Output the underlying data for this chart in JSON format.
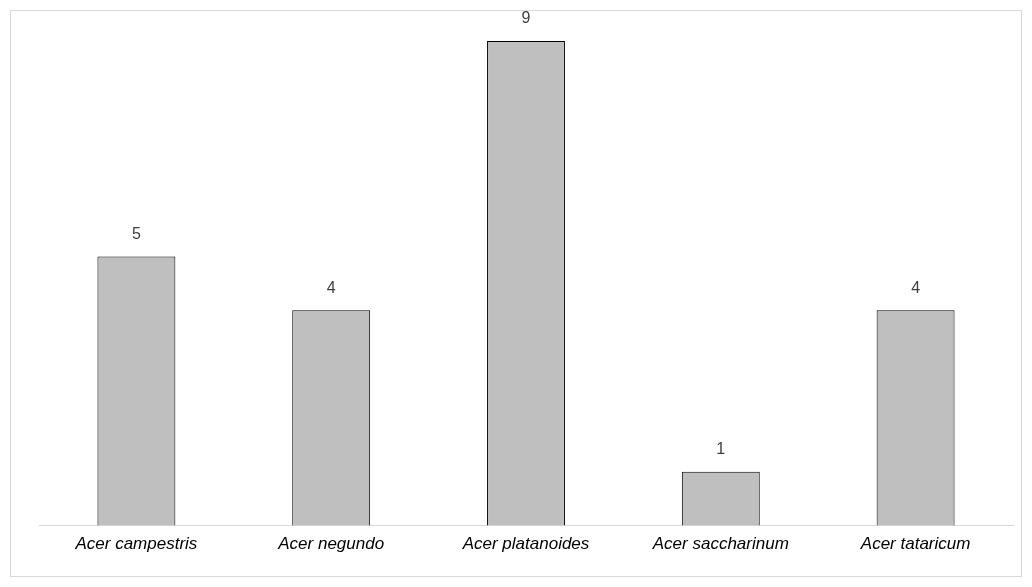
{
  "chart_data": {
    "type": "bar",
    "categories": [
      "Acer campestris",
      "Acer negundo",
      "Acer platanoides",
      "Acer saccharinum",
      "Acer tataricum"
    ],
    "values": [
      5,
      4,
      9,
      1,
      4
    ],
    "color": "#bfbfbf",
    "data_labels": true,
    "tick_labels": "x",
    "grid": false,
    "legend": false
  }
}
